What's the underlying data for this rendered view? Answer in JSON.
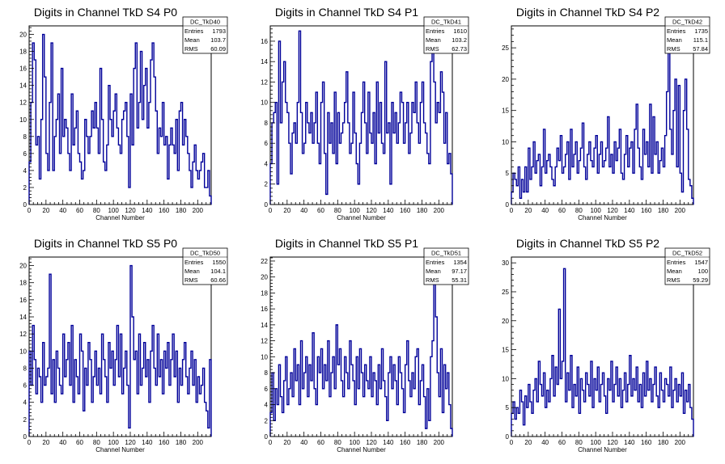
{
  "chart_data": [
    {
      "type": "histogram",
      "title": "Digits in Channel TkD S4 P0",
      "xlabel": "Channel Number",
      "xlim": [
        0,
        216
      ],
      "ylim": [
        0,
        21
      ],
      "xticks": [
        0,
        20,
        40,
        60,
        80,
        100,
        120,
        140,
        160,
        180,
        200
      ],
      "yticks": [
        0,
        2,
        4,
        6,
        8,
        10,
        12,
        14,
        16,
        18,
        20
      ],
      "bin_width": 2,
      "stats": {
        "name": "DC_TkD40",
        "entries": "1793",
        "mean": "103.7",
        "rms": "60.09"
      },
      "values": [
        5,
        12,
        19,
        17,
        7,
        8,
        3,
        10,
        20,
        15,
        6,
        4,
        12,
        19,
        4,
        8,
        10,
        13,
        6,
        16,
        8,
        10,
        9,
        6,
        4,
        13,
        7,
        9,
        11,
        6,
        5,
        3,
        4,
        10,
        8,
        6,
        8,
        11,
        9,
        12,
        9,
        6,
        16,
        10,
        5,
        4,
        7,
        14,
        10,
        8,
        11,
        13,
        9,
        7,
        6,
        10,
        11,
        12,
        8,
        2,
        13,
        7,
        16,
        19,
        9,
        12,
        18,
        10,
        14,
        16,
        9,
        12,
        17,
        19,
        15,
        11,
        6,
        9,
        8,
        12,
        7,
        8,
        3,
        7,
        9,
        7,
        6,
        10,
        4,
        11,
        12,
        7,
        10,
        8,
        6,
        4,
        2,
        5,
        7,
        4,
        3,
        4,
        5,
        6,
        2,
        2,
        4,
        1
      ]
    },
    {
      "type": "histogram",
      "title": "Digits in Channel TkD S4 P1",
      "xlabel": "Channel Number",
      "xlim": [
        0,
        216
      ],
      "ylim": [
        0,
        17.5
      ],
      "xticks": [
        0,
        20,
        40,
        60,
        80,
        100,
        120,
        140,
        160,
        180,
        200
      ],
      "yticks": [
        0,
        2,
        4,
        6,
        8,
        10,
        12,
        14,
        16
      ],
      "bin_width": 2,
      "stats": {
        "name": "DC_TkD41",
        "entries": "1610",
        "mean": "103.2",
        "rms": "62.73"
      },
      "values": [
        4,
        8,
        9,
        10,
        2,
        16,
        8,
        12,
        14,
        10,
        9,
        6,
        3,
        7,
        8,
        6,
        10,
        17,
        9,
        5,
        6,
        10,
        8,
        7,
        9,
        6,
        8,
        11,
        6,
        4,
        10,
        12,
        5,
        1,
        9,
        6,
        8,
        5,
        11,
        4,
        9,
        6,
        7,
        8,
        10,
        13,
        8,
        5,
        6,
        11,
        7,
        4,
        2,
        6,
        9,
        12,
        8,
        5,
        11,
        7,
        6,
        9,
        4,
        12,
        7,
        10,
        6,
        5,
        14,
        7,
        8,
        2,
        10,
        7,
        9,
        6,
        8,
        11,
        10,
        6,
        8,
        10,
        5,
        7,
        10,
        9,
        12,
        8,
        6,
        10,
        12,
        8,
        7,
        5,
        4,
        14,
        15,
        12,
        8,
        10,
        9,
        13,
        11,
        6,
        9,
        4,
        5,
        3
      ]
    },
    {
      "type": "histogram",
      "title": "Digits in Channel TkD S4 P2",
      "xlabel": "Channel Number",
      "xlim": [
        0,
        216
      ],
      "ylim": [
        0,
        28.5
      ],
      "xticks": [
        0,
        20,
        40,
        60,
        80,
        100,
        120,
        140,
        160,
        180,
        200
      ],
      "yticks": [
        0,
        5,
        10,
        15,
        20,
        25
      ],
      "bin_width": 2,
      "stats": {
        "name": "DC_TkD42",
        "entries": "1735",
        "mean": "115.1",
        "rms": "57.84"
      },
      "values": [
        2,
        5,
        4,
        3,
        6,
        1,
        4,
        2,
        6,
        2,
        9,
        4,
        6,
        10,
        5,
        7,
        8,
        3,
        6,
        12,
        5,
        7,
        8,
        6,
        4,
        3,
        6,
        9,
        7,
        11,
        5,
        6,
        8,
        10,
        4,
        12,
        6,
        8,
        10,
        5,
        7,
        9,
        13,
        6,
        4,
        8,
        10,
        7,
        6,
        9,
        11,
        5,
        8,
        10,
        6,
        7,
        9,
        14,
        6,
        8,
        5,
        10,
        7,
        9,
        12,
        5,
        4,
        8,
        11,
        6,
        9,
        10,
        5,
        12,
        16,
        9,
        6,
        4,
        12,
        8,
        10,
        6,
        16,
        5,
        14,
        8,
        10,
        5,
        7,
        9,
        6,
        11,
        18,
        27,
        12,
        8,
        15,
        20,
        6,
        19,
        5,
        2,
        15,
        20,
        12,
        4,
        3,
        1
      ]
    },
    {
      "type": "histogram",
      "title": "Digits in Channel TkD S5 P0",
      "xlabel": "Channel Number",
      "xlim": [
        0,
        216
      ],
      "ylim": [
        0,
        21
      ],
      "xticks": [
        0,
        20,
        40,
        60,
        80,
        100,
        120,
        140,
        160,
        180,
        200
      ],
      "yticks": [
        0,
        2,
        4,
        6,
        8,
        10,
        12,
        14,
        16,
        18,
        20
      ],
      "bin_width": 2,
      "stats": {
        "name": "DC_TkD50",
        "entries": "1550",
        "mean": "104.1",
        "rms": "60.66"
      },
      "values": [
        10,
        6,
        13,
        9,
        5,
        8,
        7,
        4,
        11,
        6,
        7,
        8,
        19,
        5,
        9,
        4,
        10,
        8,
        6,
        5,
        12,
        7,
        9,
        11,
        6,
        13,
        4,
        9,
        7,
        5,
        12,
        10,
        3,
        8,
        6,
        11,
        9,
        4,
        7,
        10,
        6,
        8,
        5,
        12,
        9,
        7,
        4,
        11,
        8,
        10,
        6,
        9,
        13,
        7,
        12,
        5,
        8,
        10,
        6,
        1,
        20,
        14,
        9,
        10,
        5,
        12,
        6,
        8,
        11,
        7,
        9,
        4,
        10,
        13,
        8,
        6,
        12,
        7,
        9,
        5,
        10,
        8,
        11,
        6,
        9,
        12,
        7,
        10,
        4,
        8,
        6,
        9,
        11,
        7,
        5,
        8,
        10,
        6,
        9,
        4,
        7,
        5,
        6,
        8,
        4,
        3,
        1,
        9
      ]
    },
    {
      "type": "histogram",
      "title": "Digits in Channel TkD S5 P1",
      "xlabel": "Channel Number",
      "xlim": [
        0,
        216
      ],
      "ylim": [
        0,
        22.5
      ],
      "xticks": [
        0,
        20,
        40,
        60,
        80,
        100,
        120,
        140,
        160,
        180,
        200
      ],
      "yticks": [
        0,
        2,
        4,
        6,
        8,
        10,
        12,
        14,
        16,
        18,
        20,
        22
      ],
      "bin_width": 2,
      "stats": {
        "name": "DC_TkD51",
        "entries": "1354",
        "mean": "97.17",
        "rms": "55.31"
      },
      "values": [
        3,
        8,
        2,
        6,
        4,
        9,
        5,
        3,
        7,
        10,
        4,
        6,
        8,
        5,
        11,
        7,
        9,
        4,
        12,
        6,
        8,
        10,
        5,
        9,
        7,
        13,
        6,
        4,
        10,
        8,
        11,
        6,
        9,
        7,
        12,
        5,
        8,
        10,
        6,
        14,
        9,
        11,
        7,
        5,
        10,
        8,
        6,
        12,
        9,
        7,
        4,
        10,
        6,
        11,
        8,
        5,
        9,
        7,
        6,
        10,
        5,
        8,
        7,
        4,
        9,
        6,
        11,
        7,
        5,
        2,
        8,
        10,
        6,
        9,
        7,
        4,
        10,
        8,
        6,
        3,
        9,
        12,
        7,
        5,
        8,
        6,
        10,
        11,
        4,
        7,
        9,
        5,
        1,
        6,
        2,
        10,
        12,
        20,
        15,
        8,
        5,
        11,
        3,
        9,
        6,
        8,
        4,
        1
      ]
    },
    {
      "type": "histogram",
      "title": "Digits in Channel TkD S5 P2",
      "xlabel": "Channel Number",
      "xlim": [
        0,
        216
      ],
      "ylim": [
        0,
        31
      ],
      "xticks": [
        0,
        20,
        40,
        60,
        80,
        100,
        120,
        140,
        160,
        180,
        200
      ],
      "yticks": [
        0,
        5,
        10,
        15,
        20,
        25,
        30
      ],
      "bin_width": 2,
      "stats": {
        "name": "DC_TkD52",
        "entries": "1547",
        "mean": "100",
        "rms": "59.29"
      },
      "values": [
        4,
        6,
        3,
        5,
        4,
        8,
        6,
        2,
        7,
        5,
        9,
        6,
        4,
        8,
        10,
        6,
        13,
        9,
        7,
        11,
        5,
        8,
        6,
        10,
        14,
        7,
        12,
        9,
        22,
        10,
        13,
        29,
        6,
        11,
        8,
        14,
        5,
        9,
        7,
        12,
        4,
        10,
        8,
        6,
        11,
        9,
        7,
        13,
        5,
        10,
        8,
        12,
        6,
        9,
        11,
        7,
        4,
        10,
        8,
        13,
        6,
        9,
        12,
        7,
        10,
        5,
        8,
        11,
        6,
        9,
        14,
        7,
        10,
        8,
        12,
        6,
        9,
        5,
        11,
        7,
        13,
        8,
        10,
        6,
        9,
        12,
        7,
        5,
        11,
        8,
        6,
        10,
        9,
        7,
        12,
        5,
        8,
        10,
        6,
        9,
        7,
        11,
        4,
        8,
        6,
        9,
        5,
        3
      ]
    }
  ],
  "stats_labels": {
    "entries": "Entries",
    "mean": "Mean",
    "rms": "RMS"
  },
  "colors": {
    "line": "#000099",
    "axis": "#000000",
    "background": "#ffffff"
  }
}
